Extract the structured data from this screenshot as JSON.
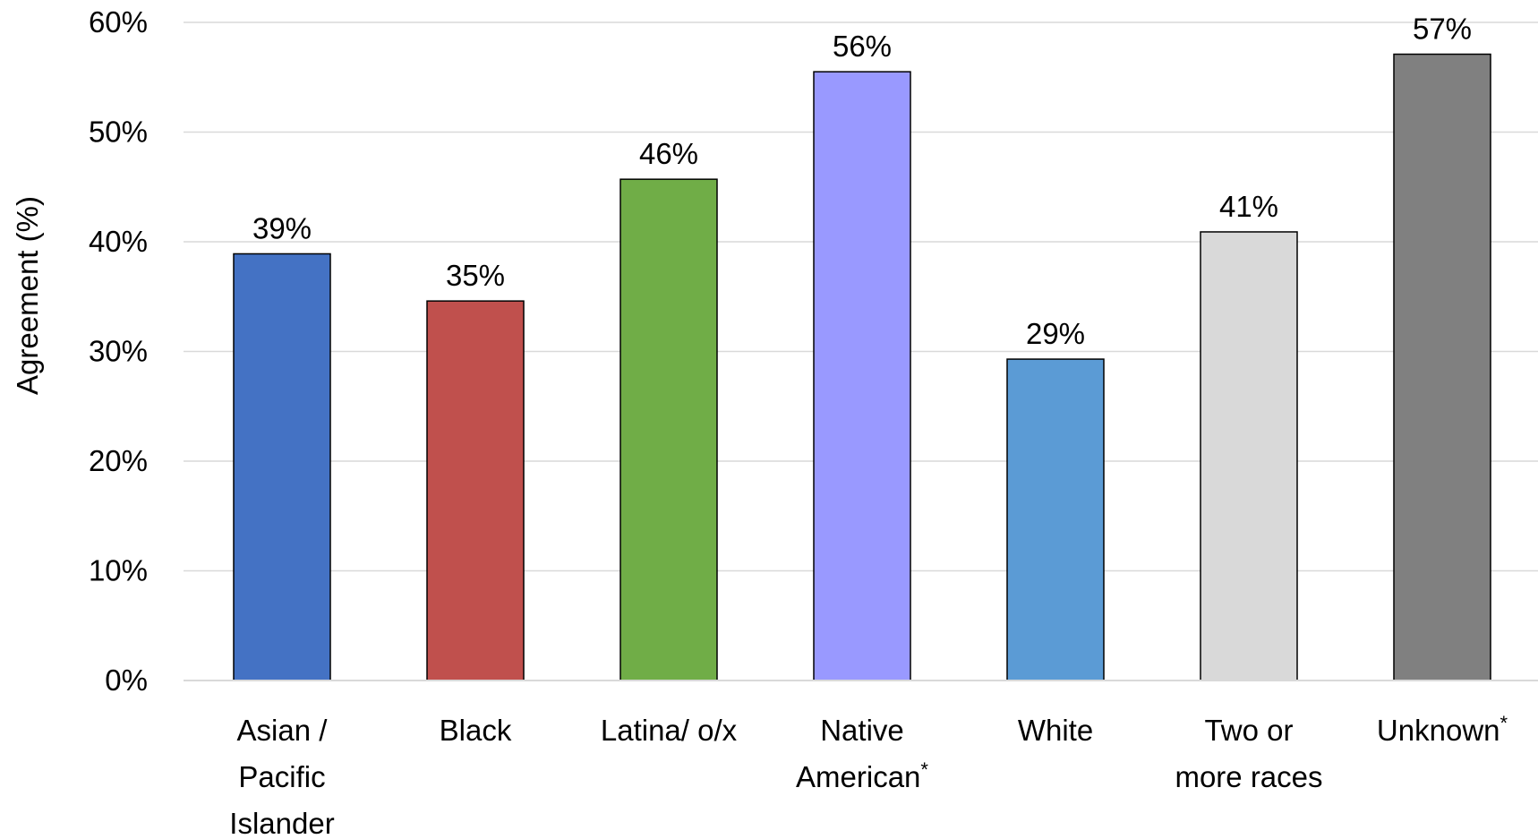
{
  "chart_data": {
    "type": "bar",
    "ylabel": "Agreement (%)",
    "ylim": [
      0,
      60
    ],
    "yticks": [
      "0%",
      "10%",
      "20%",
      "30%",
      "40%",
      "50%",
      "60%"
    ],
    "grid": true,
    "categories": [
      [
        "Asian /",
        "Pacific",
        "Islander"
      ],
      [
        "Black"
      ],
      [
        "Latina/ o/x"
      ],
      [
        "Native",
        "American"
      ],
      [
        "White"
      ],
      [
        "Two or",
        "more races"
      ],
      [
        "Unknown"
      ]
    ],
    "asterisk": [
      false,
      false,
      false,
      true,
      false,
      false,
      true
    ],
    "asterisk_symbol": "*",
    "values": [
      38.9,
      34.6,
      45.7,
      55.5,
      29.3,
      40.9,
      57.1
    ],
    "data_labels": [
      "39%",
      "35%",
      "46%",
      "56%",
      "29%",
      "41%",
      "57%"
    ],
    "colors": [
      "#4472C4",
      "#C0504D",
      "#70AD47",
      "#9999FF",
      "#5B9BD5",
      "#D9D9D9",
      "#808080"
    ]
  }
}
